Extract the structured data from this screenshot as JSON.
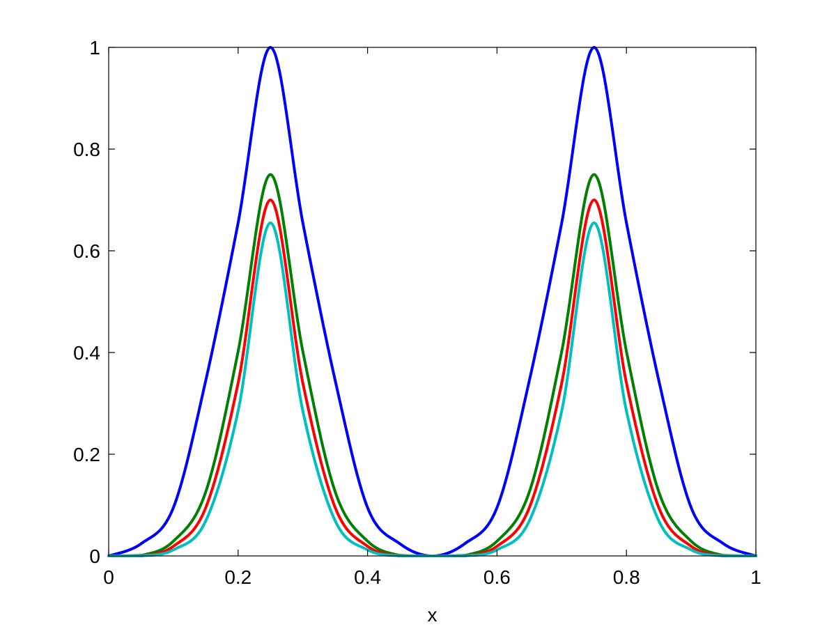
{
  "chart_data": {
    "type": "line",
    "title": "",
    "xlabel": "x",
    "ylabel": "",
    "xlim": [
      0,
      1
    ],
    "ylim": [
      0,
      1
    ],
    "xticks": [
      0,
      0.2,
      0.4,
      0.6,
      0.8,
      1
    ],
    "xtick_labels": [
      "0",
      "0.2",
      "0.4",
      "0.6",
      "0.8",
      "1"
    ],
    "yticks": [
      0,
      0.2,
      0.4,
      0.6,
      0.8,
      1
    ],
    "ytick_labels": [
      "0",
      "0.2",
      "0.4",
      "0.6",
      "0.8",
      "1"
    ],
    "grid": false,
    "x": [
      0,
      0.05,
      0.1,
      0.15,
      0.2,
      0.25,
      0.3,
      0.35,
      0.4,
      0.45,
      0.5,
      0.55,
      0.6,
      0.65,
      0.7,
      0.75,
      0.8,
      0.85,
      0.9,
      0.95,
      1
    ],
    "series": [
      {
        "color": "#0000ff",
        "values": [
          0,
          0.024,
          0.095,
          0.345,
          0.655,
          1.0,
          0.655,
          0.345,
          0.095,
          0.024,
          0,
          0.024,
          0.095,
          0.345,
          0.655,
          1.0,
          0.655,
          0.345,
          0.095,
          0.024,
          0
        ]
      },
      {
        "color": "#008000",
        "values": [
          0,
          0.001,
          0.029,
          0.126,
          0.402,
          0.75,
          0.402,
          0.126,
          0.029,
          0.001,
          0,
          0.001,
          0.029,
          0.126,
          0.402,
          0.75,
          0.402,
          0.126,
          0.029,
          0.001,
          0
        ]
      },
      {
        "color": "#ff0000",
        "values": [
          0,
          0.0,
          0.019,
          0.095,
          0.34,
          0.7,
          0.34,
          0.095,
          0.019,
          0.0,
          0,
          0.0,
          0.019,
          0.095,
          0.34,
          0.7,
          0.34,
          0.095,
          0.019,
          0.0,
          0
        ]
      },
      {
        "color": "#00bfbf",
        "values": [
          0,
          0.0,
          0.012,
          0.069,
          0.285,
          0.655,
          0.285,
          0.069,
          0.012,
          0.0,
          0,
          0.0,
          0.012,
          0.069,
          0.285,
          0.655,
          0.285,
          0.069,
          0.012,
          0.0,
          0
        ]
      }
    ]
  }
}
